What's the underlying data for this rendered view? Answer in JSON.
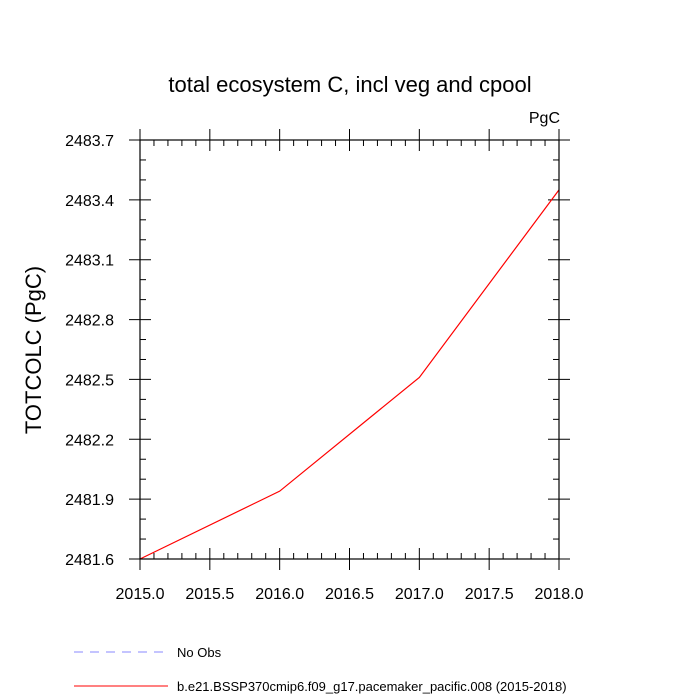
{
  "chart_data": {
    "type": "line",
    "title": "total ecosystem C, incl veg and cpool",
    "units": "PgC",
    "xlabel": "",
    "ylabel": "TOTCOLC  (PgC)",
    "xlim": [
      2015.0,
      2018.0
    ],
    "ylim": [
      2481.6,
      2483.7
    ],
    "x_ticks": [
      2015.0,
      2015.5,
      2016.0,
      2016.5,
      2017.0,
      2017.5,
      2018.0
    ],
    "x_tick_labels": [
      "2015.0",
      "2015.5",
      "2016.0",
      "2016.5",
      "2017.0",
      "2017.5",
      "2018.0"
    ],
    "y_ticks": [
      2481.6,
      2481.9,
      2482.2,
      2482.5,
      2482.8,
      2483.1,
      2483.4,
      2483.7
    ],
    "y_tick_labels": [
      "2481.6",
      "2481.9",
      "2482.2",
      "2482.5",
      "2482.8",
      "2483.1",
      "2483.4",
      "2483.7"
    ],
    "grid": false,
    "series": [
      {
        "name": "b.e21.BSSP370cmip6.f09_g17.pacemaker_pacific.008 (2015-2018)",
        "color": "#ff0000",
        "style": "solid",
        "x": [
          2015.0,
          2016.0,
          2017.0,
          2018.0
        ],
        "y": [
          2481.6,
          2481.94,
          2482.51,
          2483.45
        ]
      }
    ],
    "legend": {
      "placement": "bottom",
      "entries": [
        {
          "label": "No Obs",
          "color": "#8888ff",
          "style": "dashed"
        },
        {
          "label": "b.e21.BSSP370cmip6.f09_g17.pacemaker_pacific.008 (2015-2018)",
          "color": "#ff0000",
          "style": "solid"
        }
      ]
    }
  }
}
